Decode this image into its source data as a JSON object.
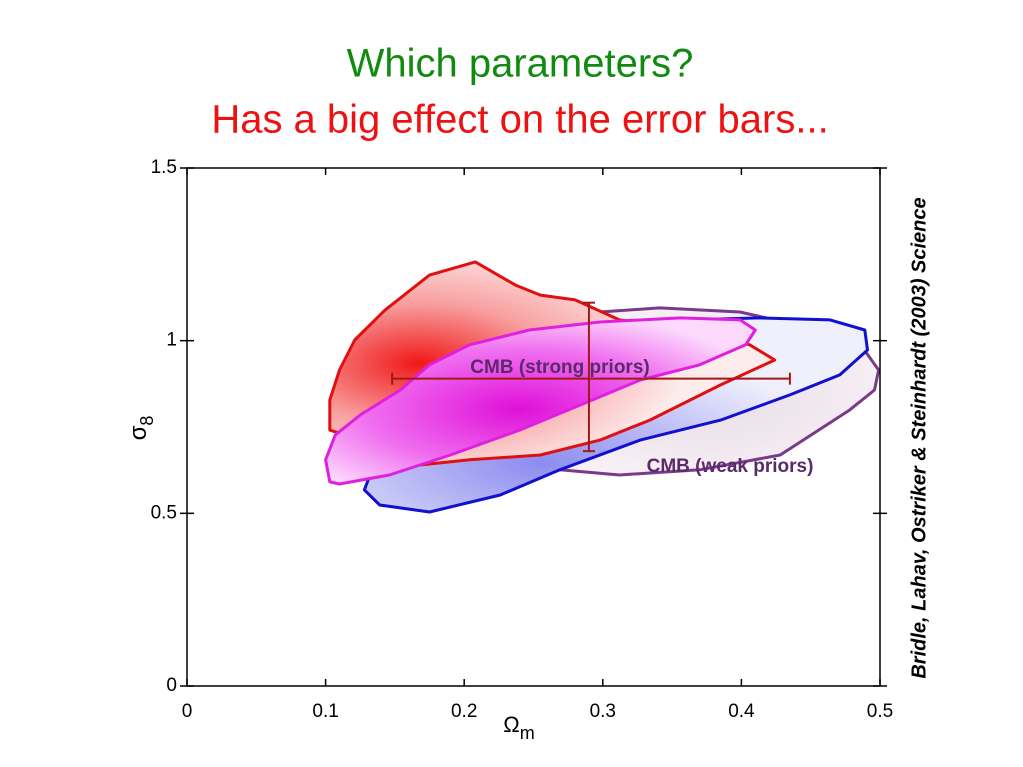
{
  "chart_data": {
    "type": "contour",
    "title": "Which parameters?",
    "subtitle": "Has a big effect on the error bars...",
    "citation": "Bridle, Lahav, Ostriker & Steinhardt (2003) Science",
    "xlabel": {
      "symbol": "Ω",
      "subscript": "m"
    },
    "ylabel": {
      "symbol": "σ",
      "subscript": "8"
    },
    "xlim": [
      0,
      0.5
    ],
    "ylim": [
      0,
      1.5
    ],
    "xticks": [
      0,
      0.1,
      0.2,
      0.3,
      0.4,
      0.5
    ],
    "yticks": [
      0,
      0.5,
      1,
      1.5
    ],
    "series": [
      {
        "name": "CMB (weak priors)",
        "color": "#7a3a8a",
        "x": [
          0.269,
          0.312,
          0.37,
          0.428,
          0.478,
          0.496,
          0.499,
          0.486,
          0.457,
          0.399,
          0.341,
          0.298,
          0.269,
          0.255
        ],
        "y": [
          0.626,
          0.611,
          0.626,
          0.669,
          0.799,
          0.857,
          0.915,
          0.988,
          1.031,
          1.083,
          1.095,
          1.083,
          0.944,
          0.741
        ]
      },
      {
        "color": "#1010d0",
        "x": [
          0.128,
          0.139,
          0.175,
          0.226,
          0.269,
          0.327,
          0.385,
          0.435,
          0.471,
          0.491,
          0.489,
          0.464,
          0.413,
          0.363,
          0.298,
          0.226,
          0.168,
          0.132
        ],
        "y": [
          0.568,
          0.524,
          0.504,
          0.553,
          0.626,
          0.712,
          0.77,
          0.843,
          0.901,
          0.973,
          1.031,
          1.06,
          1.066,
          1.06,
          1.002,
          0.828,
          0.683,
          0.611
        ]
      },
      {
        "color": "#e01010",
        "x": [
          0.103,
          0.103,
          0.11,
          0.121,
          0.143,
          0.175,
          0.208,
          0.237,
          0.255,
          0.28,
          0.312,
          0.37,
          0.406,
          0.424,
          0.385,
          0.334,
          0.298,
          0.255,
          0.204,
          0.168,
          0.125
        ],
        "y": [
          0.741,
          0.828,
          0.915,
          1.002,
          1.089,
          1.19,
          1.228,
          1.161,
          1.132,
          1.118,
          1.06,
          1.031,
          0.988,
          0.944,
          0.872,
          0.77,
          0.712,
          0.669,
          0.655,
          0.64,
          0.712
        ]
      },
      {
        "name": "CMB (strong priors)",
        "color": "#e020e0",
        "x": [
          0.103,
          0.1,
          0.107,
          0.125,
          0.154,
          0.175,
          0.204,
          0.247,
          0.298,
          0.356,
          0.399,
          0.41,
          0.403,
          0.37,
          0.327,
          0.284,
          0.24,
          0.19,
          0.146,
          0.11
        ],
        "y": [
          0.591,
          0.655,
          0.727,
          0.785,
          0.857,
          0.93,
          0.988,
          1.031,
          1.054,
          1.066,
          1.06,
          1.031,
          0.988,
          0.93,
          0.886,
          0.814,
          0.741,
          0.669,
          0.611,
          0.585
        ]
      }
    ],
    "errorbar": {
      "color": "#a01818",
      "x": 0.29,
      "y": 0.89,
      "xlow": 0.148,
      "xhigh": 0.435,
      "ylow": 0.68,
      "yhigh": 1.11
    }
  }
}
